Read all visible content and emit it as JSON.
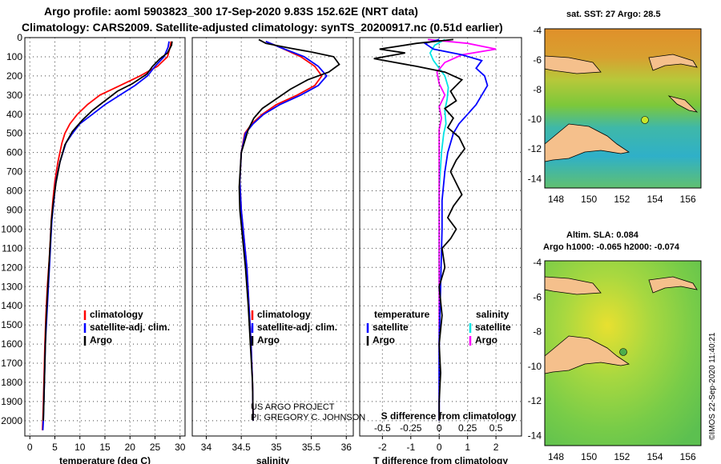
{
  "header": {
    "title1": "Argo profile: aoml 5903823_300 17-Sep-2020 9.83S 152.62E (NRT data)",
    "title2": "Climatology: CARS2009. Satellite-adjusted climatology: synTS_20200917.nc (0.51d earlier)"
  },
  "credit": {
    "line1": "US ARGO PROJECT",
    "line2": "PI: GREGORY C. JOHNSON"
  },
  "stamp": "©IMOS 22-Sep-2020 11:40:21",
  "colors": {
    "climatology": "#ff0000",
    "satellite": "#0000ff",
    "argo": "#000000",
    "sal_satellite": "#00e5e5",
    "sal_argo": "#ff00ff"
  },
  "chart_data": [
    {
      "type": "line",
      "xlabel": "temperature (deg C)",
      "ylabel": "",
      "xlim": [
        -1,
        31
      ],
      "ylim": [
        2080,
        0
      ],
      "xticks": [
        0,
        5,
        10,
        15,
        20,
        25,
        30
      ],
      "yticks": [
        0,
        100,
        200,
        300,
        400,
        500,
        600,
        700,
        800,
        900,
        1000,
        1100,
        1200,
        1300,
        1400,
        1500,
        1600,
        1700,
        1800,
        1900,
        2000
      ],
      "legend": [
        "climatology",
        "satellite-adj. clim.",
        "Argo"
      ],
      "legend_position": "lower-right",
      "series": [
        {
          "name": "climatology",
          "color": "#ff0000",
          "x": [
            28.2,
            28,
            27.5,
            25.5,
            22,
            18,
            14,
            11.5,
            9.5,
            8,
            7,
            6.4,
            5.6,
            5,
            4.6,
            4.3,
            4.1,
            3.9,
            3.5,
            3.2,
            3,
            2.8,
            2.6,
            2.5
          ],
          "y": [
            20,
            50,
            100,
            150,
            200,
            250,
            300,
            350,
            400,
            450,
            500,
            550,
            650,
            750,
            850,
            950,
            1050,
            1150,
            1300,
            1450,
            1600,
            1800,
            2000,
            2050
          ]
        },
        {
          "name": "satellite-adj. clim.",
          "color": "#0000ff",
          "x": [
            27.8,
            27.6,
            26.8,
            25,
            23.5,
            21,
            18,
            15,
            12.5,
            10,
            8.5,
            7.2,
            6,
            5.2,
            4.8,
            4.4,
            4.2,
            4,
            3.7,
            3.4,
            3.1,
            2.9,
            2.7,
            2.6
          ],
          "y": [
            20,
            50,
            100,
            150,
            200,
            250,
            300,
            350,
            400,
            450,
            500,
            550,
            650,
            750,
            850,
            950,
            1050,
            1150,
            1300,
            1450,
            1600,
            1800,
            2000,
            2050
          ]
        },
        {
          "name": "Argo",
          "color": "#000000",
          "x": [
            28.4,
            28.3,
            27.5,
            26,
            24.5,
            23.4,
            20.5,
            17.5,
            15,
            12.5,
            10.5,
            8.5,
            7,
            6,
            5.2,
            4.7,
            4.3,
            4.1,
            3.8,
            3.5,
            3.2,
            3,
            2.8,
            2.7
          ],
          "y": [
            20,
            40,
            80,
            110,
            150,
            190,
            240,
            280,
            330,
            380,
            430,
            490,
            560,
            650,
            760,
            860,
            960,
            1060,
            1200,
            1350,
            1500,
            1700,
            1900,
            2000
          ]
        }
      ]
    },
    {
      "type": "line",
      "xlabel": "salinity",
      "ylabel": "",
      "xlim": [
        33.8,
        36.1
      ],
      "ylim": [
        2080,
        0
      ],
      "xticks": [
        34,
        34.5,
        35,
        35.5,
        36
      ],
      "legend": [
        "climatology",
        "satellite-adj. clim.",
        "Argo"
      ],
      "legend_position": "lower-right",
      "series": [
        {
          "name": "climatology",
          "color": "#ff0000",
          "x": [
            34.85,
            35.05,
            35.35,
            35.55,
            35.65,
            35.55,
            35.3,
            35.0,
            34.8,
            34.65,
            34.55,
            34.5,
            34.48,
            34.5,
            34.54,
            34.58,
            34.61,
            34.64,
            34.66,
            34.67
          ],
          "y": [
            20,
            50,
            100,
            150,
            200,
            250,
            300,
            350,
            400,
            450,
            500,
            600,
            750,
            900,
            1050,
            1200,
            1400,
            1600,
            1800,
            2000
          ]
        },
        {
          "name": "satellite-adj. clim.",
          "color": "#0000ff",
          "x": [
            34.85,
            35.05,
            35.4,
            35.6,
            35.72,
            35.6,
            35.35,
            35.05,
            34.82,
            34.67,
            34.56,
            34.5,
            34.48,
            34.5,
            34.54,
            34.58,
            34.61,
            34.64,
            34.66,
            34.67
          ],
          "y": [
            20,
            50,
            100,
            150,
            200,
            250,
            300,
            350,
            400,
            450,
            500,
            600,
            750,
            900,
            1050,
            1200,
            1400,
            1600,
            1800,
            2000
          ]
        },
        {
          "name": "Argo",
          "color": "#000000",
          "x": [
            34.75,
            34.85,
            35.2,
            35.5,
            35.82,
            35.9,
            35.75,
            35.45,
            35.2,
            35.0,
            34.8,
            34.68,
            34.6,
            34.5,
            34.47,
            34.48,
            34.52,
            34.56,
            34.6,
            34.63,
            34.66,
            34.67
          ],
          "y": [
            10,
            30,
            55,
            75,
            100,
            140,
            180,
            220,
            270,
            320,
            370,
            420,
            480,
            600,
            780,
            900,
            1050,
            1200,
            1400,
            1600,
            1800,
            2000
          ]
        }
      ]
    },
    {
      "type": "line",
      "xlabel": "T difference from climatology",
      "title": "S difference from climatology",
      "ylabel": "",
      "xlim": [
        -2.8,
        2.9
      ],
      "ylim": [
        2080,
        0
      ],
      "xticks": [
        -2,
        -1,
        0,
        1,
        2
      ],
      "x2ticks": [
        -0.5,
        -0.25,
        0,
        0.25,
        0.5
      ],
      "x2labels": [
        "-0.5",
        "-0.25",
        "0",
        "0.25",
        "0.5"
      ],
      "legend_temperature": {
        "heading": "temperature",
        "items": [
          "satellite",
          "Argo"
        ]
      },
      "legend_salinity": {
        "heading": "salinity",
        "items": [
          "satellite",
          "Argo"
        ]
      },
      "series": [
        {
          "name": "T satellite",
          "color": "#0000ff",
          "x": [
            0,
            -0.5,
            -0.2,
            0.8,
            1.5,
            1.3,
            1.6,
            1.7,
            1.5,
            1.3,
            1,
            0.7,
            0.5,
            0.3,
            0.2,
            0.1,
            0.1,
            0.05,
            0,
            0
          ],
          "y": [
            10,
            30,
            60,
            90,
            120,
            160,
            200,
            250,
            300,
            350,
            400,
            450,
            500,
            600,
            700,
            850,
            1000,
            1300,
            1600,
            2000
          ]
        },
        {
          "name": "T Argo",
          "color": "#000000",
          "x": [
            0.5,
            -0.8,
            -2.1,
            -1.2,
            -2.3,
            -0.8,
            0.2,
            0.8,
            0.4,
            0.6,
            0.2,
            0.5,
            0.3,
            0.7,
            0.9,
            0.6,
            0.4,
            0.6,
            0.8,
            0.5,
            0.3,
            0.6,
            0.4,
            0.1,
            0.2,
            0,
            0.1,
            0,
            0.05,
            0,
            0
          ],
          "y": [
            10,
            30,
            60,
            80,
            110,
            150,
            180,
            220,
            280,
            330,
            370,
            420,
            470,
            520,
            580,
            640,
            700,
            760,
            820,
            880,
            940,
            1000,
            1050,
            1100,
            1200,
            1300,
            1450,
            1600,
            1750,
            1900,
            2000
          ]
        }
      ],
      "series_salinity": [
        {
          "name": "S satellite",
          "color": "#00e5e5",
          "x": [
            0.05,
            -0.04,
            -0.08,
            -0.05,
            0.0,
            0.05,
            0.08,
            0.07,
            0.05,
            0.06,
            0.04,
            0.03,
            0.02,
            0.01,
            0,
            0,
            0,
            0,
            0
          ],
          "y": [
            10,
            40,
            80,
            120,
            160,
            200,
            260,
            320,
            380,
            450,
            500,
            550,
            600,
            700,
            800,
            1000,
            1300,
            1600,
            2000
          ]
        },
        {
          "name": "S Argo",
          "color": "#ff00ff",
          "x": [
            -0.1,
            0.25,
            0.5,
            0.2,
            0.05,
            -0.02,
            0.0,
            0.05,
            0.0,
            0.02,
            0.0,
            0.0,
            0,
            0,
            0,
            0,
            0
          ],
          "y": [
            10,
            30,
            60,
            90,
            130,
            180,
            240,
            300,
            360,
            420,
            480,
            550,
            650,
            800,
            1000,
            1300,
            2000
          ]
        }
      ]
    }
  ],
  "maps": [
    {
      "title": "sat. SST: 27 Argo: 28.5",
      "subtitle": "",
      "xticks": [
        "148",
        "150",
        "152",
        "154",
        "156"
      ],
      "yticks": [
        "-4",
        "-6",
        "-8",
        "-10",
        "-12",
        "-14"
      ]
    },
    {
      "title": "Altim. SLA: 0.084",
      "subtitle": "Argo h1000: -0.065 h2000: -0.074",
      "xticks": [
        "148",
        "150",
        "152",
        "154",
        "156"
      ],
      "yticks": [
        "-4",
        "-6",
        "-8",
        "-10",
        "-12",
        "-14"
      ]
    }
  ]
}
